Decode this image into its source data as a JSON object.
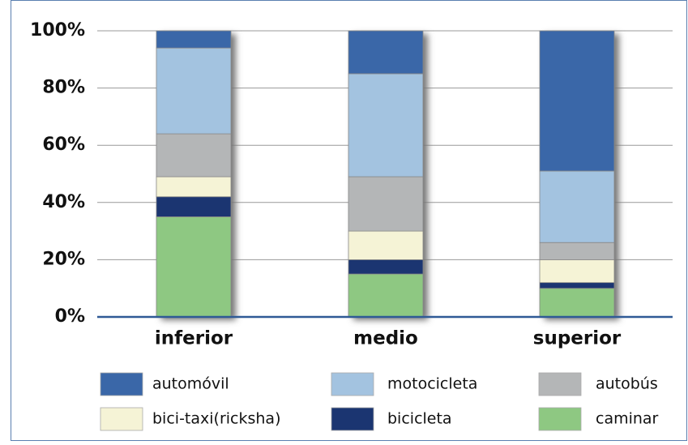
{
  "chart_data": {
    "type": "stacked_bar",
    "categories": [
      "inferior",
      "medio",
      "superior"
    ],
    "series": [
      {
        "name": "automóvil",
        "color": "#3a67a8",
        "values": [
          6,
          15,
          49
        ]
      },
      {
        "name": "motocicleta",
        "color": "#a3c3e0",
        "values": [
          30,
          36,
          25
        ]
      },
      {
        "name": "autobús",
        "color": "#b4b6b7",
        "values": [
          15,
          19,
          6
        ]
      },
      {
        "name": "bici-taxi(ricksha)",
        "color": "#f5f3d6",
        "values": [
          7,
          10,
          8
        ]
      },
      {
        "name": "bicicleta",
        "color": "#1b3571",
        "values": [
          7,
          5,
          2
        ]
      },
      {
        "name": "caminar",
        "color": "#8ec882",
        "values": [
          35,
          15,
          10
        ]
      }
    ],
    "ylim": [
      0,
      100
    ],
    "yticks": [
      {
        "value": 0,
        "label": "0%"
      },
      {
        "value": 20,
        "label": "20%"
      },
      {
        "value": 40,
        "label": "40%"
      },
      {
        "value": 60,
        "label": "60%"
      },
      {
        "value": 80,
        "label": "80%"
      },
      {
        "value": 100,
        "label": "100%"
      }
    ],
    "grid": true
  }
}
